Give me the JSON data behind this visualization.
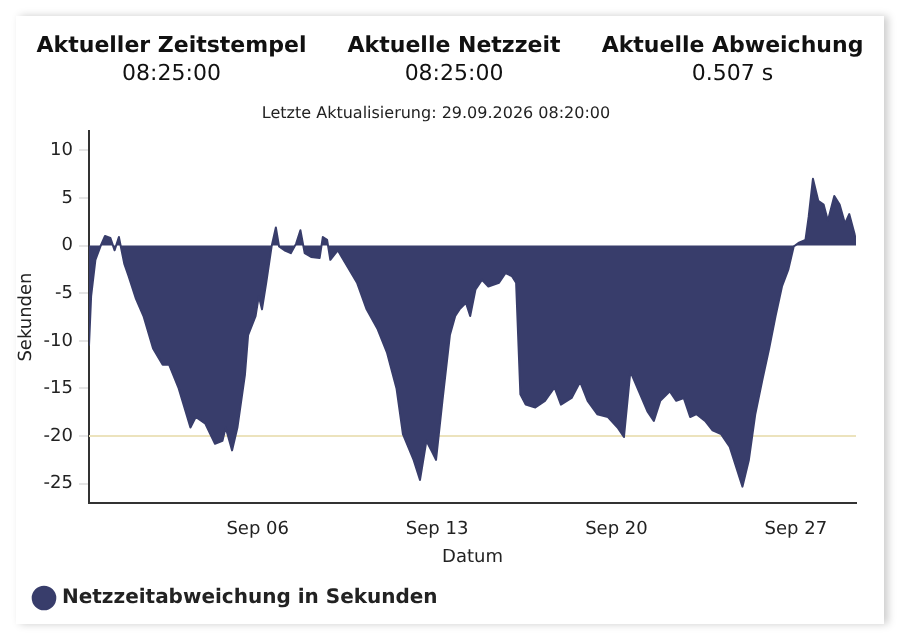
{
  "chart_data": {
    "type": "area",
    "subtitle": "Letzte Aktualisierung: 29.09.2026 08:20:00",
    "xlabel": "Datum",
    "ylabel": "Sekunden",
    "annotations": [
      "Aktueller Zeitstempel",
      "08:25:00",
      "Aktuelle Netzzeit",
      "08:25:00",
      "Aktuelle Abweichung",
      "0.507 s"
    ],
    "x": [
      "2026-08-30T10:00",
      "2026-08-30T12:00",
      "2026-08-30T16:00",
      "2026-08-30T21:00",
      "2026-08-31T01:00",
      "2026-08-31T06:00",
      "2026-08-31T10:00",
      "2026-08-31T14:00",
      "2026-08-31T19:00",
      "2026-08-31T23:00",
      "2026-09-01T06:00",
      "2026-09-01T13:00",
      "2026-09-01T22:00",
      "2026-09-02T07:00",
      "2026-09-02T13:00",
      "2026-09-02T22:00",
      "2026-09-03T09:00",
      "2026-09-03T14:00",
      "2026-09-03T23:00",
      "2026-09-04T08:00",
      "2026-09-04T15:00",
      "2026-09-04T18:00",
      "2026-09-05T00:00",
      "2026-09-05T05:00",
      "2026-09-05T12:00",
      "2026-09-05T15:00",
      "2026-09-05T22:00",
      "2026-09-06T01:00",
      "2026-09-06T04:00",
      "2026-09-06T08:00",
      "2026-09-06T13:00",
      "2026-09-06T17:00",
      "2026-09-06T20:00",
      "2026-09-07T01:00",
      "2026-09-07T07:00",
      "2026-09-07T12:00",
      "2026-09-07T16:00",
      "2026-09-07T20:00",
      "2026-09-08T02:00",
      "2026-09-08T10:00",
      "2026-09-08T13:00",
      "2026-09-08T17:00",
      "2026-09-08T20:00",
      "2026-09-09T03:00",
      "2026-09-09T12:00",
      "2026-09-09T21:00",
      "2026-09-10T06:00",
      "2026-09-10T16:00",
      "2026-09-11T01:00",
      "2026-09-11T10:00",
      "2026-09-11T16:00",
      "2026-09-12T02:00",
      "2026-09-12T08:00",
      "2026-09-12T14:00",
      "2026-09-12T20:00",
      "2026-09-12T23:00",
      "2026-09-13T05:00",
      "2026-09-13T12:00",
      "2026-09-13T17:00",
      "2026-09-13T21:00",
      "2026-09-14T03:00",
      "2026-09-14T07:00",
      "2026-09-14T12:00",
      "2026-09-14T18:00",
      "2026-09-15T00:00",
      "2026-09-15T10:00",
      "2026-09-15T16:00",
      "2026-09-15T22:00",
      "2026-09-16T02:00",
      "2026-09-16T06:00",
      "2026-09-16T11:00",
      "2026-09-16T20:00",
      "2026-09-17T05:00",
      "2026-09-17T14:00",
      "2026-09-17T20:00",
      "2026-09-18T06:00",
      "2026-09-18T14:00",
      "2026-09-18T21:00",
      "2026-09-19T06:00",
      "2026-09-19T16:00",
      "2026-09-20T01:00",
      "2026-09-20T07:00",
      "2026-09-20T13:00",
      "2026-09-20T21:00",
      "2026-09-21T05:00",
      "2026-09-21T11:00",
      "2026-09-21T17:00",
      "2026-09-22T02:00",
      "2026-09-22T08:00",
      "2026-09-22T15:00",
      "2026-09-22T21:00",
      "2026-09-23T03:00",
      "2026-09-23T11:00",
      "2026-09-23T18:00",
      "2026-09-24T02:00",
      "2026-09-24T10:00",
      "2026-09-24T16:00",
      "2026-09-24T22:00",
      "2026-09-25T04:00",
      "2026-09-25T10:00",
      "2026-09-25T17:00",
      "2026-09-25T23:00",
      "2026-09-26T05:00",
      "2026-09-26T11:00",
      "2026-09-26T17:00",
      "2026-09-26T22:00",
      "2026-09-27T03:00",
      "2026-09-27T09:00",
      "2026-09-27T12:00",
      "2026-09-27T16:00",
      "2026-09-27T21:00",
      "2026-09-28T02:00",
      "2026-09-28T06:00",
      "2026-09-28T12:00",
      "2026-09-28T17:00",
      "2026-09-28T22:00",
      "2026-09-29T02:00",
      "2026-09-29T07:00",
      "2026-09-29T08:20"
    ],
    "series": [
      {
        "name": "Netzzeitabweichung in Sekunden",
        "color": "#383d6b",
        "values": [
          -10.5,
          -5.3,
          -1.5,
          0,
          1,
          0.8,
          -0.5,
          0.9,
          -1.9,
          -3.2,
          -5.6,
          -7.4,
          -10.8,
          -12.5,
          -12.5,
          -15,
          -19.1,
          -18,
          -18.7,
          -20.8,
          -20.5,
          -19.1,
          -21.5,
          -19.1,
          -13.6,
          -9.4,
          -7.4,
          -5.3,
          -6.7,
          -3.9,
          -0.1,
          1.9,
          -0.1,
          -0.5,
          -0.8,
          0.2,
          1.6,
          -0.8,
          -1.2,
          -1.3,
          0.9,
          0.6,
          -1.5,
          -0.5,
          -2.2,
          -3.9,
          -6.7,
          -8.7,
          -11.2,
          -15,
          -19.8,
          -22.5,
          -24.6,
          -20.5,
          -21.8,
          -22.5,
          -16.3,
          -9.4,
          -7.4,
          -6.7,
          -6,
          -7.4,
          -4.6,
          -3.6,
          -4.3,
          -3.9,
          -2.9,
          -3.2,
          -3.9,
          -15.6,
          -16.7,
          -17,
          -16.3,
          -14.9,
          -16.7,
          -16,
          -14.3,
          -16.3,
          -17.7,
          -18,
          -19.1,
          -20.1,
          -13.2,
          -15.3,
          -17.4,
          -18.4,
          -16.3,
          -15.3,
          -16.3,
          -16,
          -18,
          -17.7,
          -18.4,
          -19.4,
          -19.8,
          -21.1,
          -23.2,
          -25.3,
          -22.5,
          -17.7,
          -13.9,
          -10.8,
          -7.4,
          -4.3,
          -2.5,
          -0.1,
          0.3,
          0.6,
          3,
          7,
          4.7,
          4.3,
          2.6,
          5.2,
          4.3,
          2.3,
          3.3,
          1.2,
          0.5
        ]
      }
    ],
    "xlim": [
      "2026-08-30T10:00",
      "2026-09-29T08:20"
    ],
    "xticks": [
      {
        "value": "2026-09-06",
        "label": "Sep 06"
      },
      {
        "value": "2026-09-13",
        "label": "Sep 13"
      },
      {
        "value": "2026-09-20",
        "label": "Sep 20"
      },
      {
        "value": "2026-09-27",
        "label": "Sep 27"
      }
    ],
    "ylim": [
      -27,
      12
    ],
    "yticks": [
      10,
      5,
      0,
      -5,
      -10,
      -15,
      -20,
      -25
    ],
    "ref_lines": [
      {
        "axis": "y",
        "value": -20,
        "color": "#ece3bd"
      }
    ],
    "grid": false,
    "legend": "bottom left",
    "marker": "none"
  }
}
